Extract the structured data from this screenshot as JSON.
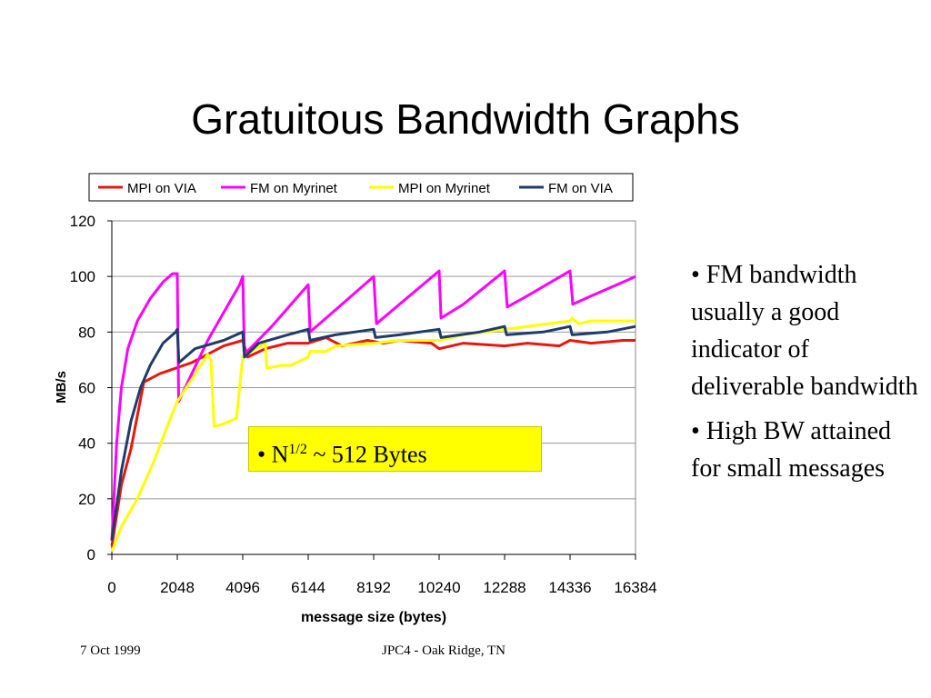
{
  "slide": {
    "title": "Gratuitous Bandwidth Graphs",
    "bullets": [
      "• FM bandwidth usually a good indicator of deliverable bandwidth",
      "• High BW attained for small messages"
    ],
    "callout": {
      "prefix": "• N",
      "sup": "1/2",
      "suffix": " ~ 512 Bytes",
      "color": "#ffff00"
    },
    "footer_left": "7 Oct 1999",
    "footer_center": "JPC4 - Oak Ridge, TN"
  },
  "chart_data": {
    "type": "line",
    "title": "",
    "xlabel": "message size (bytes)",
    "ylabel": "MB/s",
    "xlim": [
      0,
      16384
    ],
    "ylim": [
      0,
      120
    ],
    "x_ticks": [
      0,
      2048,
      4096,
      6144,
      8192,
      10240,
      12288,
      14336,
      16384
    ],
    "y_ticks": [
      0,
      20,
      40,
      60,
      80,
      100,
      120
    ],
    "grid": "horizontal",
    "legend_position": "top",
    "series": [
      {
        "name": "MPI on VIA",
        "color": "#e8170e",
        "points": [
          [
            0,
            3
          ],
          [
            300,
            25
          ],
          [
            600,
            38
          ],
          [
            1000,
            62
          ],
          [
            1500,
            65
          ],
          [
            2000,
            67
          ],
          [
            2500,
            69
          ],
          [
            3000,
            72
          ],
          [
            3500,
            75
          ],
          [
            4096,
            77
          ],
          [
            4250,
            71
          ],
          [
            4800,
            74
          ],
          [
            5500,
            76
          ],
          [
            6144,
            76
          ],
          [
            6700,
            78
          ],
          [
            7200,
            75
          ],
          [
            8000,
            77
          ],
          [
            8500,
            76
          ],
          [
            9000,
            77
          ],
          [
            10000,
            76
          ],
          [
            10240,
            74
          ],
          [
            11000,
            76
          ],
          [
            12288,
            75
          ],
          [
            13000,
            76
          ],
          [
            14000,
            75
          ],
          [
            14336,
            77
          ],
          [
            15000,
            76
          ],
          [
            16000,
            77
          ],
          [
            16384,
            77
          ]
        ]
      },
      {
        "name": "FM  on Myrinet",
        "color": "#ff00ff",
        "points": [
          [
            0,
            5
          ],
          [
            150,
            40
          ],
          [
            300,
            60
          ],
          [
            500,
            74
          ],
          [
            800,
            84
          ],
          [
            1200,
            92
          ],
          [
            1600,
            98
          ],
          [
            1900,
            101
          ],
          [
            2048,
            101
          ],
          [
            2090,
            55
          ],
          [
            2500,
            65
          ],
          [
            3000,
            77
          ],
          [
            3500,
            87
          ],
          [
            4000,
            97
          ],
          [
            4096,
            100
          ],
          [
            4150,
            72
          ],
          [
            5000,
            82
          ],
          [
            6144,
            97
          ],
          [
            6200,
            80
          ],
          [
            7000,
            88
          ],
          [
            8192,
            100
          ],
          [
            8280,
            83
          ],
          [
            9000,
            90
          ],
          [
            10240,
            102
          ],
          [
            10300,
            85
          ],
          [
            11000,
            90
          ],
          [
            12288,
            102
          ],
          [
            12370,
            89
          ],
          [
            13000,
            93
          ],
          [
            14336,
            102
          ],
          [
            14420,
            90
          ],
          [
            15000,
            93
          ],
          [
            16000,
            98
          ],
          [
            16384,
            100
          ]
        ]
      },
      {
        "name": "MPI on Myrinet",
        "color": "#ffff00",
        "points": [
          [
            0,
            1
          ],
          [
            300,
            10
          ],
          [
            800,
            20
          ],
          [
            1300,
            33
          ],
          [
            1800,
            48
          ],
          [
            2048,
            55
          ],
          [
            2500,
            63
          ],
          [
            3000,
            72
          ],
          [
            3100,
            70
          ],
          [
            3200,
            46
          ],
          [
            3500,
            47
          ],
          [
            3900,
            49
          ],
          [
            4096,
            71
          ],
          [
            4500,
            74
          ],
          [
            4800,
            76
          ],
          [
            4850,
            67
          ],
          [
            5300,
            68
          ],
          [
            5600,
            68
          ],
          [
            6144,
            71
          ],
          [
            6200,
            73
          ],
          [
            6700,
            73
          ],
          [
            7000,
            75
          ],
          [
            8192,
            76
          ],
          [
            9000,
            77
          ],
          [
            10240,
            77
          ],
          [
            11000,
            79
          ],
          [
            12288,
            81
          ],
          [
            13000,
            82
          ],
          [
            14336,
            84
          ],
          [
            14400,
            85
          ],
          [
            14600,
            83
          ],
          [
            15000,
            84
          ],
          [
            16000,
            84
          ],
          [
            16384,
            84
          ]
        ]
      },
      {
        "name": "FM on VIA",
        "color": "#1f3c6b",
        "points": [
          [
            0,
            5
          ],
          [
            300,
            30
          ],
          [
            600,
            48
          ],
          [
            900,
            60
          ],
          [
            1200,
            68
          ],
          [
            1600,
            76
          ],
          [
            2000,
            80
          ],
          [
            2048,
            81
          ],
          [
            2100,
            69
          ],
          [
            2600,
            74
          ],
          [
            3500,
            77
          ],
          [
            4096,
            80
          ],
          [
            4150,
            71
          ],
          [
            4600,
            76
          ],
          [
            5500,
            79
          ],
          [
            6144,
            81
          ],
          [
            6200,
            77
          ],
          [
            7000,
            79
          ],
          [
            8192,
            81
          ],
          [
            8250,
            78
          ],
          [
            9000,
            79
          ],
          [
            10240,
            81
          ],
          [
            10300,
            78
          ],
          [
            11500,
            80
          ],
          [
            12288,
            82
          ],
          [
            12350,
            79
          ],
          [
            13500,
            80
          ],
          [
            14336,
            82
          ],
          [
            14400,
            79
          ],
          [
            15500,
            80
          ],
          [
            16384,
            82
          ]
        ]
      }
    ]
  }
}
